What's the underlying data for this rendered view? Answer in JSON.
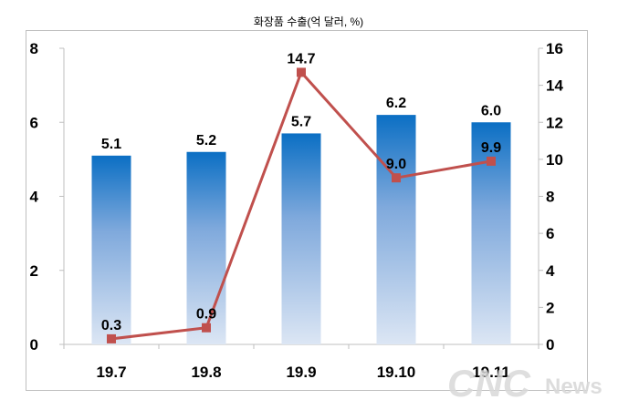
{
  "chart_data": {
    "type": "bar",
    "title": "화장품 수출(억 달러, %)",
    "categories": [
      "19.7",
      "19.8",
      "19.9",
      "19.10",
      "19.11"
    ],
    "series": [
      {
        "type": "bar",
        "axis": "left",
        "values": [
          5.1,
          5.2,
          5.7,
          6.2,
          6.0
        ],
        "labels": [
          "5.1",
          "5.2",
          "5.7",
          "6.2",
          "6.0"
        ]
      },
      {
        "type": "line",
        "axis": "right",
        "values": [
          0.3,
          0.9,
          14.7,
          9.0,
          9.9
        ],
        "labels": [
          "0.3",
          "0.9",
          "14.7",
          "9.0",
          "9.9"
        ]
      }
    ],
    "y_left": {
      "ylim": [
        0,
        8
      ],
      "ticks": [
        "0",
        "2",
        "4",
        "6",
        "8"
      ]
    },
    "y_right": {
      "ylim": [
        0,
        16
      ],
      "ticks": [
        "0",
        "2",
        "4",
        "6",
        "8",
        "10",
        "12",
        "14",
        "16"
      ]
    },
    "grid": false,
    "colors": {
      "bar_top": "#0b6fc4",
      "bar_bottom": "#dce6f4",
      "line": "#c0504d"
    }
  },
  "watermark": {
    "text": "CNC",
    "suffix": "News"
  }
}
